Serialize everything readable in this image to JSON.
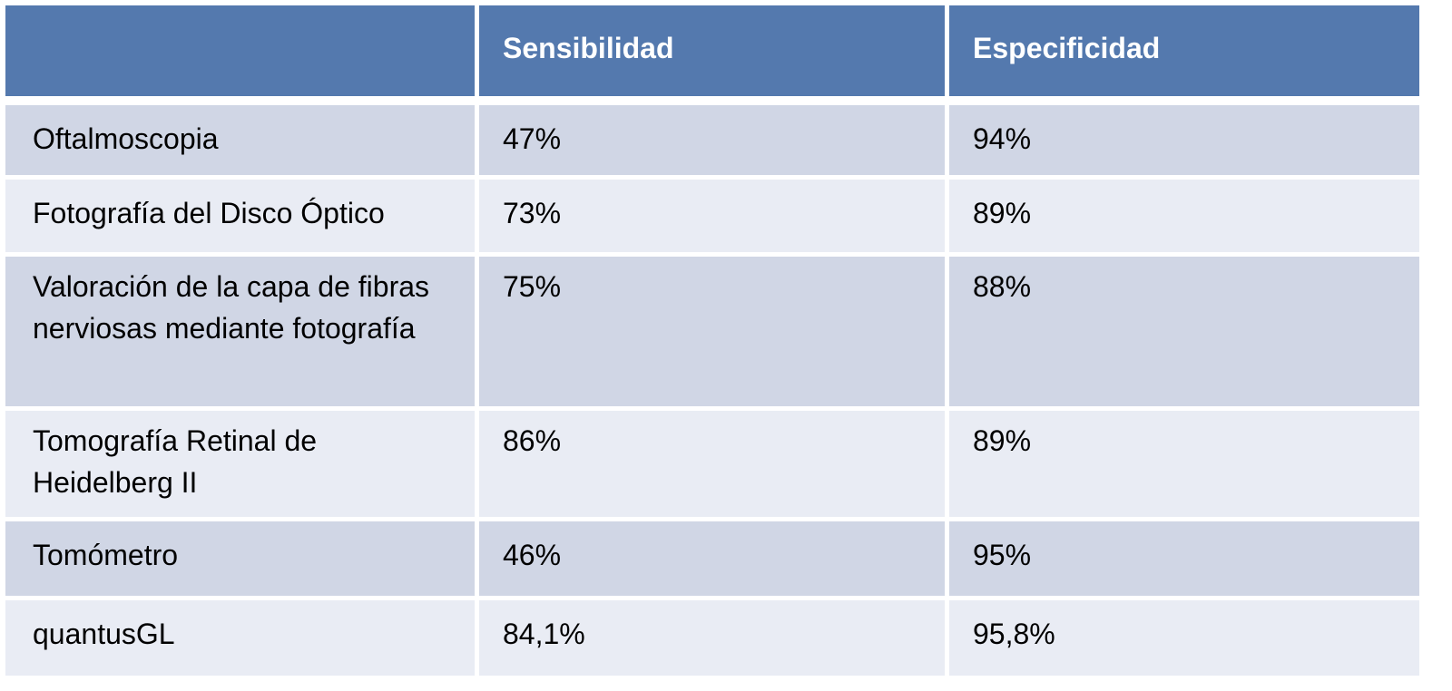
{
  "table": {
    "headers": [
      "",
      "Sensibilidad",
      "Especificidad"
    ],
    "rows": [
      {
        "method": "Oftalmoscopia",
        "sensibilidad": "47%",
        "especificidad": "94%"
      },
      {
        "method": "Fotografía del Disco Óptico",
        "sensibilidad": "73%",
        "especificidad": "89%"
      },
      {
        "method": "Valoración de la capa de fibras nerviosas mediante fotografía",
        "sensibilidad": "75%",
        "especificidad": "88%"
      },
      {
        "method": "Tomografía Retinal de Heidelberg II",
        "sensibilidad": "86%",
        "especificidad": "89%"
      },
      {
        "method": "Tomómetro",
        "sensibilidad": "46%",
        "especificidad": "95%"
      },
      {
        "method": "quantusGL",
        "sensibilidad": "84,1%",
        "especificidad": "95,8%"
      }
    ]
  },
  "colors": {
    "header_bg": "#5479ae",
    "row_dark": "#d0d6e5",
    "row_light": "#e9ecf4"
  }
}
